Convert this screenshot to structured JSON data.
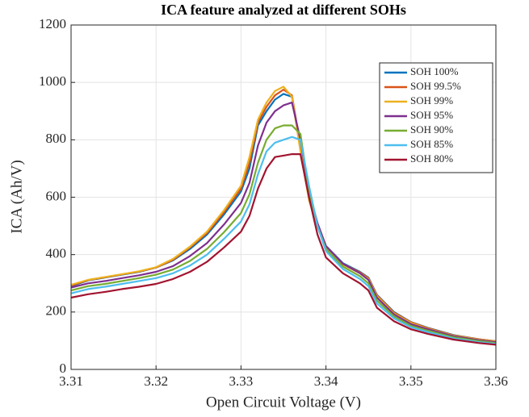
{
  "chart_data": {
    "type": "line",
    "title": "ICA feature analyzed at different SOHs",
    "xlabel": "Open Circuit Voltage (V)",
    "ylabel": "ICA (Ah/V)",
    "x": [
      3.31,
      3.312,
      3.314,
      3.316,
      3.318,
      3.32,
      3.322,
      3.324,
      3.326,
      3.328,
      3.33,
      3.331,
      3.332,
      3.333,
      3.334,
      3.335,
      3.336,
      3.337,
      3.338,
      3.339,
      3.34,
      3.342,
      3.344,
      3.345,
      3.346,
      3.348,
      3.35,
      3.352,
      3.355,
      3.358,
      3.36
    ],
    "series": [
      {
        "name": "SOH 100%",
        "color": "#0072BD",
        "values": [
          290,
          310,
          320,
          330,
          340,
          355,
          380,
          420,
          470,
          540,
          620,
          700,
          850,
          900,
          940,
          960,
          950,
          780,
          600,
          500,
          430,
          370,
          340,
          320,
          260,
          200,
          165,
          145,
          120,
          105,
          98
        ]
      },
      {
        "name": "SOH 99.5%",
        "color": "#D95319",
        "values": [
          292,
          311,
          321,
          331,
          341,
          355,
          382,
          425,
          475,
          548,
          630,
          720,
          860,
          915,
          955,
          975,
          955,
          775,
          595,
          498,
          428,
          368,
          338,
          318,
          258,
          198,
          164,
          144,
          119,
          105,
          98
        ]
      },
      {
        "name": "SOH 99%",
        "color": "#EDB120",
        "values": [
          295,
          312,
          322,
          332,
          342,
          356,
          385,
          428,
          480,
          555,
          640,
          740,
          870,
          930,
          970,
          985,
          950,
          760,
          590,
          495,
          425,
          365,
          335,
          315,
          255,
          195,
          162,
          142,
          118,
          104,
          97
        ]
      },
      {
        "name": "SOH 95%",
        "color": "#7E2F8E",
        "values": [
          285,
          300,
          308,
          318,
          328,
          340,
          360,
          395,
          440,
          505,
          580,
          650,
          780,
          860,
          900,
          920,
          930,
          800,
          620,
          510,
          430,
          368,
          335,
          312,
          250,
          192,
          158,
          140,
          116,
          102,
          95
        ]
      },
      {
        "name": "SOH 90%",
        "color": "#77AC30",
        "values": [
          275,
          290,
          298,
          308,
          318,
          330,
          348,
          378,
          420,
          478,
          545,
          610,
          720,
          800,
          840,
          850,
          850,
          820,
          620,
          500,
          420,
          358,
          325,
          300,
          240,
          185,
          152,
          135,
          112,
          99,
          92
        ]
      },
      {
        "name": "SOH 85%",
        "color": "#4DBEEE",
        "values": [
          265,
          280,
          288,
          298,
          308,
          318,
          335,
          362,
          400,
          455,
          515,
          575,
          680,
          760,
          790,
          800,
          810,
          800,
          640,
          500,
          412,
          350,
          315,
          290,
          230,
          178,
          147,
          130,
          108,
          95,
          89
        ]
      },
      {
        "name": "SOH 80%",
        "color": "#A2142F",
        "values": [
          250,
          262,
          270,
          280,
          288,
          298,
          315,
          340,
          375,
          425,
          480,
          535,
          630,
          700,
          740,
          745,
          750,
          750,
          600,
          470,
          390,
          335,
          300,
          275,
          215,
          168,
          140,
          124,
          104,
          92,
          86
        ]
      }
    ],
    "xlim": [
      3.31,
      3.36
    ],
    "xticks": [
      3.31,
      3.32,
      3.33,
      3.34,
      3.35,
      3.36
    ],
    "ylim": [
      0,
      1200
    ],
    "yticks": [
      0,
      200,
      400,
      600,
      800,
      1000,
      1200
    ],
    "grid": true,
    "legend": "northeast"
  }
}
